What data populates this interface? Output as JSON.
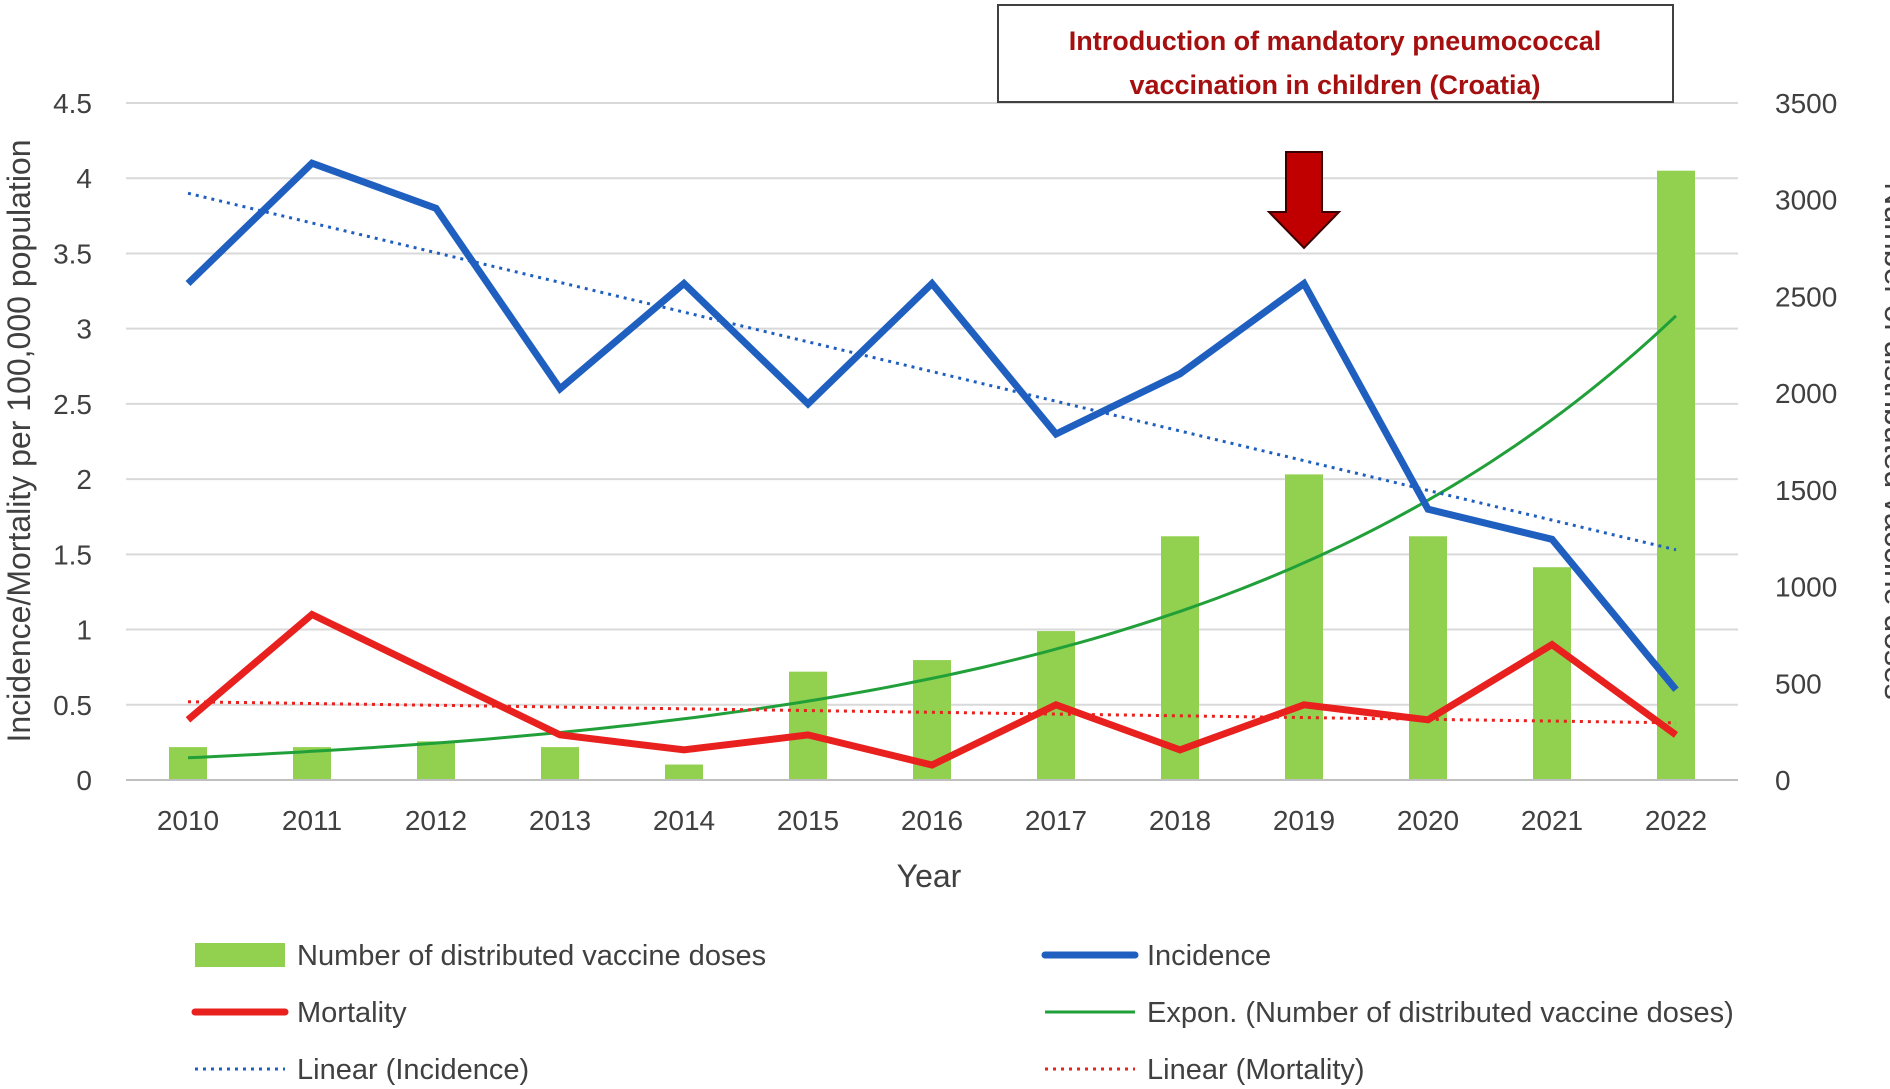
{
  "chart_data": {
    "type": "bar+line",
    "categories": [
      "2010",
      "2011",
      "2012",
      "2013",
      "2014",
      "2015",
      "2016",
      "2017",
      "2018",
      "2019",
      "2020",
      "2021",
      "2022"
    ],
    "xlabel": "Year",
    "ylabel_left": "Incidence/Mortality per 100,000 population",
    "ylabel_right": "Number of distributed vaccine doses",
    "ylim_left": [
      0,
      4.5
    ],
    "yticks_left": [
      "0",
      "0.5",
      "1",
      "1.5",
      "2",
      "2.5",
      "3",
      "3.5",
      "4",
      "4.5"
    ],
    "ylim_right": [
      0,
      3500
    ],
    "yticks_right": [
      "0",
      "500",
      "1000",
      "1500",
      "2000",
      "2500",
      "3000",
      "3500"
    ],
    "grid": true,
    "legend_position": "bottom",
    "series": [
      {
        "name": "Number of distributed vaccine doses",
        "kind": "bar",
        "axis": "right",
        "color": "#92d050",
        "values": [
          170,
          170,
          200,
          170,
          80,
          560,
          620,
          770,
          1260,
          1580,
          1260,
          1100,
          3150
        ]
      },
      {
        "name": "Incidence",
        "kind": "line",
        "axis": "left",
        "color": "#1f5fbf",
        "values": [
          3.3,
          4.1,
          3.8,
          2.6,
          3.3,
          2.5,
          3.3,
          2.3,
          2.7,
          3.3,
          1.8,
          1.6,
          0.6
        ]
      },
      {
        "name": "Mortality",
        "kind": "line",
        "axis": "left",
        "color": "#e8201e",
        "values": [
          0.4,
          1.1,
          0.7,
          0.3,
          0.2,
          0.3,
          0.1,
          0.5,
          0.2,
          0.5,
          0.4,
          0.9,
          0.3
        ]
      },
      {
        "name": "Expon. (Number of distributed vaccine doses)",
        "kind": "trend-exp",
        "axis": "right",
        "color": "#21a03a",
        "start": 115,
        "end": 2400
      },
      {
        "name": "Linear (Incidence)",
        "kind": "trend-linear",
        "axis": "left",
        "color": "#1f5fbf",
        "start": 3.9,
        "end": 1.53
      },
      {
        "name": "Linear (Mortality)",
        "kind": "trend-linear",
        "axis": "left",
        "color": "#e8201e",
        "start": 0.52,
        "end": 0.38
      }
    ],
    "annotation": {
      "lines": [
        "Introduction of mandatory pneumococcal",
        "vaccination in children (Croatia)"
      ],
      "at_category": "2019",
      "arrow_color": "#c00000"
    }
  }
}
